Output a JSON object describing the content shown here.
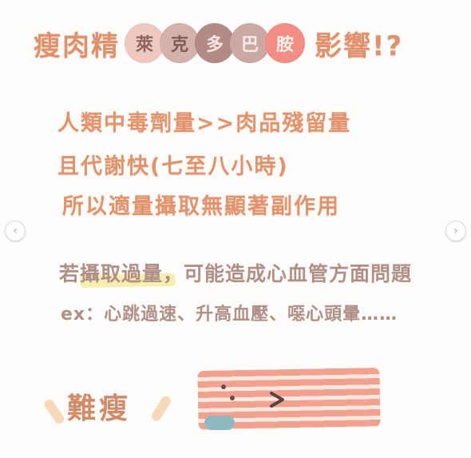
{
  "title": {
    "prefix": "瘦肉精",
    "bubbles": [
      "萊",
      "克",
      "多",
      "巴",
      "胺"
    ],
    "suffix": "影響!?"
  },
  "lines": {
    "line1": "人類中毒劑量>>肉品殘留量",
    "line2": "且代謝快(七至八小時)",
    "line3": "所以適量攝取無顯著副作用",
    "line4": "若攝取過量，可能造成心血管方面問題",
    "line5": "ex：心跳過速、升高血壓、噁心頭暈……"
  },
  "bottom": {
    "nan_text": "難瘦"
  },
  "navigation": {
    "left_arrow": "‹",
    "right_arrow": "›"
  },
  "colors": {
    "accent_orange": "#e3936b",
    "bubble_1": "#efc8bf",
    "bubble_2": "#d4b1ab",
    "bubble_3": "#b38a85",
    "bubble_4": "#cca8a4",
    "bubble_5": "#f28e83"
  },
  "icon_names": {
    "left_arrow": "chevron-left-icon",
    "right_arrow": "chevron-right-icon",
    "bacon_character": "bacon-character-icon"
  }
}
